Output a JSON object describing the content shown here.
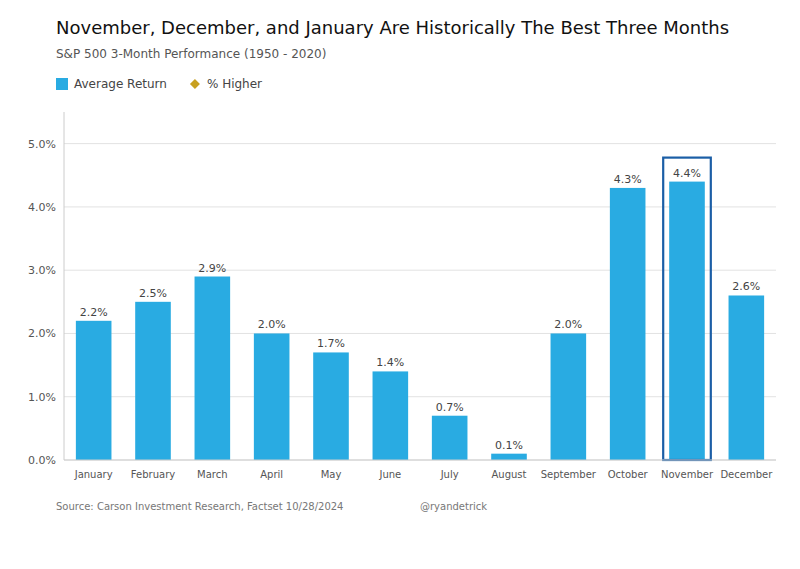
{
  "chart_data": {
    "type": "bar",
    "title": "November, December, and January Are Historically The Best Three Months",
    "subtitle": "S&P 500 3-Month Performance (1950 - 2020)",
    "source": "Source: Carson Investment Research, Factset 10/28/2024",
    "credit": "@ryandetrick",
    "categories": [
      "January",
      "February",
      "March",
      "April",
      "May",
      "June",
      "July",
      "August",
      "September",
      "October",
      "November",
      "December"
    ],
    "series": [
      {
        "name": "Average Return",
        "type": "bar",
        "color": "#29ABE2",
        "values": [
          2.2,
          2.5,
          2.9,
          2.0,
          1.7,
          1.4,
          0.7,
          0.1,
          2.0,
          4.3,
          4.4,
          2.6
        ],
        "value_labels": [
          "2.2%",
          "2.5%",
          "2.9%",
          "2.0%",
          "1.7%",
          "1.4%",
          "0.7%",
          "0.1%",
          "2.0%",
          "4.3%",
          "4.4%",
          "2.6%"
        ]
      },
      {
        "name": "% Higher",
        "type": "scatter",
        "marker": "diamond",
        "color": "#C8A020",
        "values": [
          null,
          null,
          null,
          null,
          null,
          null,
          null,
          null,
          null,
          null,
          null,
          null
        ]
      }
    ],
    "highlight": {
      "category": "November",
      "color": "#1B5EA6"
    },
    "ylim": [
      0,
      5.5
    ],
    "yticks": [
      {
        "value": 0.0,
        "label": "0.0%"
      },
      {
        "value": 1.0,
        "label": "1.0%"
      },
      {
        "value": 2.0,
        "label": "2.0%"
      },
      {
        "value": 3.0,
        "label": "3.0%"
      },
      {
        "value": 4.0,
        "label": "4.0%"
      },
      {
        "value": 5.0,
        "label": "5.0%"
      }
    ],
    "grid": true,
    "data_labels": true,
    "legend": "upper left"
  }
}
